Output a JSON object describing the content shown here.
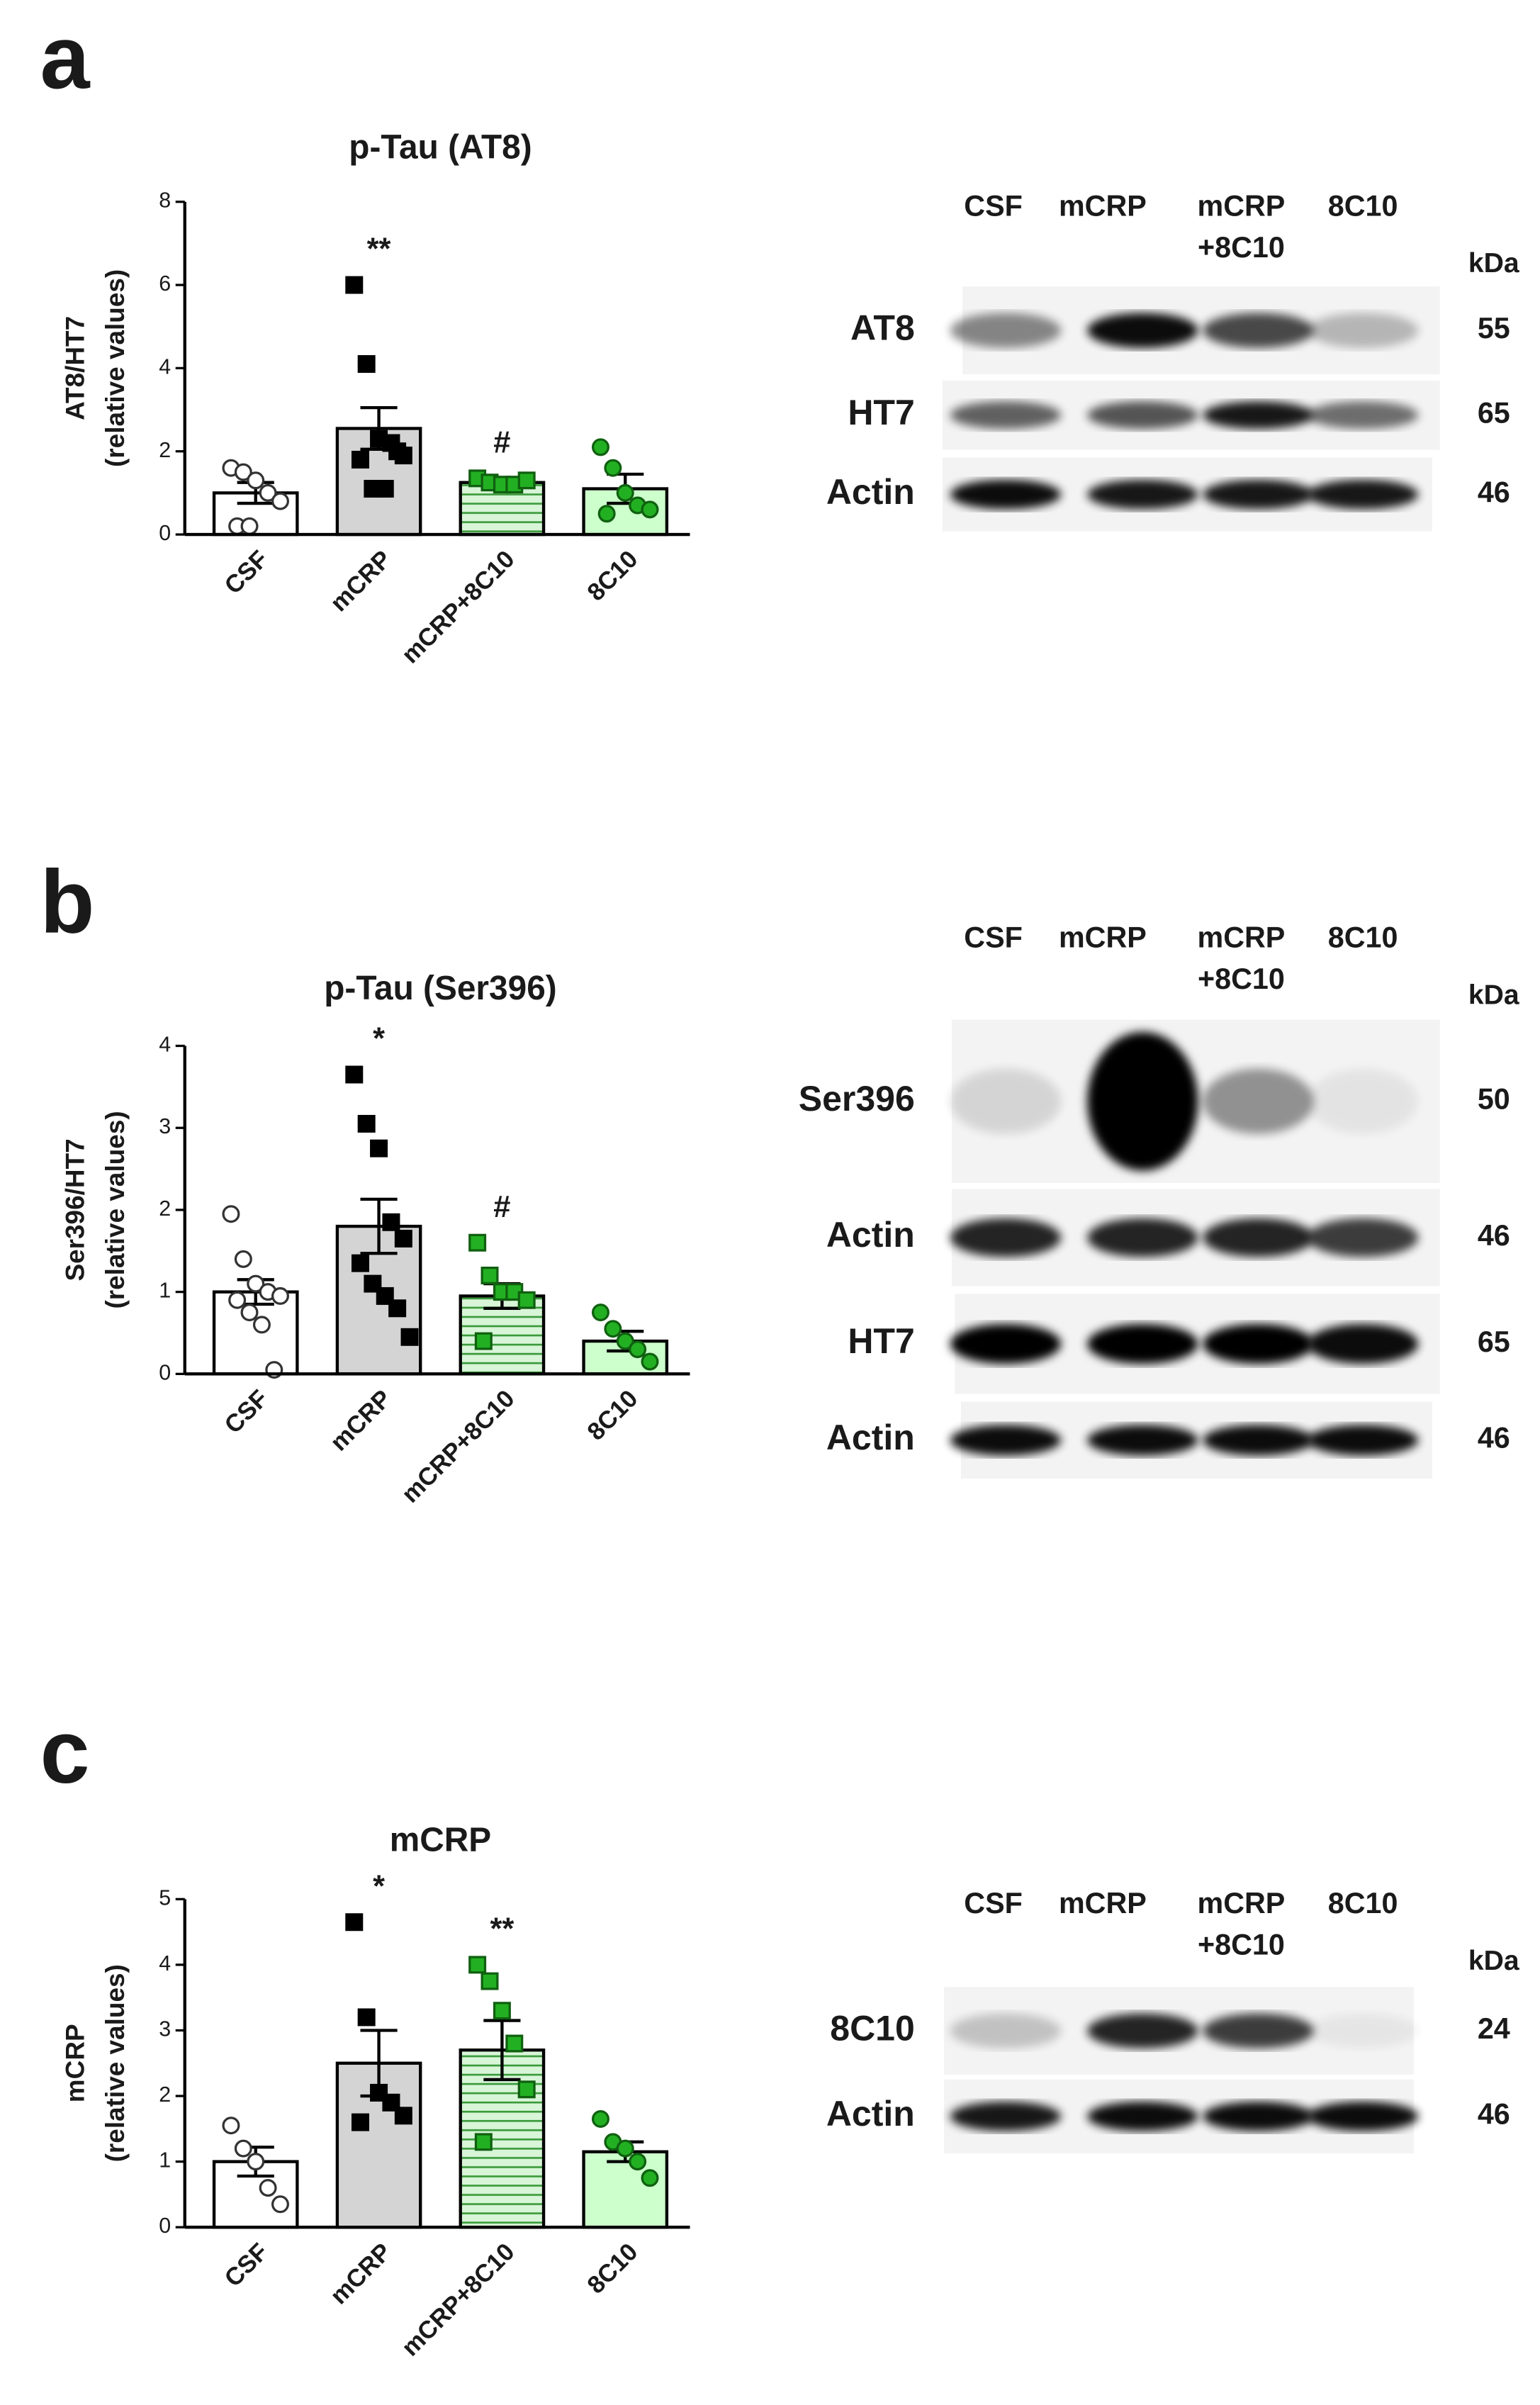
{
  "chart_data": [
    {
      "type": "bar",
      "panel_label": "a",
      "title": "p-Tau (AT8)",
      "ylabel": [
        "AT8/HT7",
        "(relative values)"
      ],
      "categories": [
        "CSF",
        "mCRP",
        "mCRP+8C10",
        "8C10"
      ],
      "values": [
        1.0,
        2.55,
        1.25,
        1.1
      ],
      "errors": [
        0.25,
        0.5,
        0.1,
        0.35
      ],
      "points": [
        [
          1.6,
          1.5,
          1.3,
          1.0,
          0.8,
          0.2,
          0.2
        ],
        [
          6.0,
          4.1,
          2.3,
          2.2,
          1.9,
          1.8,
          1.1,
          1.1,
          2.0
        ],
        [
          1.35,
          1.25,
          1.2,
          1.2,
          1.3
        ],
        [
          2.1,
          1.6,
          1.0,
          0.7,
          0.6,
          0.5
        ]
      ],
      "significance": [
        "",
        "**",
        "#",
        ""
      ],
      "bar_colors": [
        "#ffffff",
        "#d4d4d4",
        "#d8f5d8",
        "#ccffcc"
      ],
      "bar_patterns": [
        "solid",
        "solid",
        "stripes",
        "solid"
      ],
      "point_fills": [
        "#ffffff",
        "#000000",
        "#22b022",
        "#22b022"
      ],
      "point_strokes": [
        "#333333",
        "#000000",
        "#106010",
        "#106010"
      ],
      "point_shapes": [
        "circle",
        "square",
        "square",
        "circle"
      ],
      "ylim": [
        0,
        8
      ],
      "yticks": [
        0,
        2,
        4,
        6,
        8
      ]
    },
    {
      "type": "bar",
      "panel_label": "b",
      "title": "p-Tau (Ser396)",
      "ylabel": [
        "Ser396/HT7",
        "(relative values)"
      ],
      "categories": [
        "CSF",
        "mCRP",
        "mCRP+8C10",
        "8C10"
      ],
      "values": [
        1.0,
        1.8,
        0.95,
        0.4
      ],
      "errors": [
        0.15,
        0.33,
        0.15,
        0.12
      ],
      "points": [
        [
          1.95,
          1.4,
          1.1,
          1.0,
          0.95,
          0.9,
          0.75,
          0.6,
          0.05
        ],
        [
          3.65,
          3.05,
          2.75,
          1.85,
          1.65,
          1.35,
          1.1,
          0.95,
          0.8,
          0.45
        ],
        [
          1.6,
          1.2,
          1.0,
          1.0,
          0.9,
          0.4
        ],
        [
          0.75,
          0.55,
          0.4,
          0.3,
          0.15
        ]
      ],
      "significance": [
        "",
        "*",
        "#",
        ""
      ],
      "bar_colors": [
        "#ffffff",
        "#d4d4d4",
        "#d8f5d8",
        "#ccffcc"
      ],
      "bar_patterns": [
        "solid",
        "solid",
        "stripes",
        "solid"
      ],
      "point_fills": [
        "#ffffff",
        "#000000",
        "#22b022",
        "#22b022"
      ],
      "point_strokes": [
        "#333333",
        "#000000",
        "#106010",
        "#106010"
      ],
      "point_shapes": [
        "circle",
        "square",
        "square",
        "circle"
      ],
      "ylim": [
        0,
        4
      ],
      "yticks": [
        0,
        1,
        2,
        3,
        4
      ]
    },
    {
      "type": "bar",
      "panel_label": "c",
      "title": "mCRP",
      "ylabel": [
        "mCRP",
        "(relative values)"
      ],
      "categories": [
        "CSF",
        "mCRP",
        "mCRP+8C10",
        "8C10"
      ],
      "values": [
        1.0,
        2.5,
        2.7,
        1.15
      ],
      "errors": [
        0.22,
        0.5,
        0.45,
        0.15
      ],
      "points": [
        [
          1.55,
          1.2,
          1.0,
          0.6,
          0.35
        ],
        [
          4.65,
          3.2,
          2.05,
          1.9,
          1.7,
          1.6
        ],
        [
          4.0,
          3.75,
          3.3,
          2.8,
          2.1,
          1.3
        ],
        [
          1.65,
          1.3,
          1.2,
          1.0,
          0.75
        ]
      ],
      "significance": [
        "",
        "*",
        "**",
        ""
      ],
      "bar_colors": [
        "#ffffff",
        "#d4d4d4",
        "#d8f5d8",
        "#ccffcc"
      ],
      "bar_patterns": [
        "solid",
        "solid",
        "stripes",
        "solid"
      ],
      "point_fills": [
        "#ffffff",
        "#000000",
        "#22b022",
        "#22b022"
      ],
      "point_strokes": [
        "#333333",
        "#000000",
        "#106010",
        "#106010"
      ],
      "point_shapes": [
        "circle",
        "square",
        "square",
        "circle"
      ],
      "ylim": [
        0,
        5
      ],
      "yticks": [
        0,
        1,
        2,
        3,
        4,
        5
      ]
    }
  ],
  "blots": [
    {
      "lanes": [
        "CSF",
        "mCRP",
        [
          "mCRP",
          "+8C10"
        ],
        "8C10"
      ],
      "kda_label": "kDa",
      "rows": [
        {
          "label": "AT8",
          "kda": 55
        },
        {
          "label": "HT7",
          "kda": 65
        },
        {
          "label": "Actin",
          "kda": 46
        }
      ]
    },
    {
      "lanes": [
        "CSF",
        "mCRP",
        [
          "mCRP",
          "+8C10"
        ],
        "8C10"
      ],
      "kda_label": "kDa",
      "rows": [
        {
          "label": "Ser396",
          "kda": 50
        },
        {
          "label": "Actin",
          "kda": 46
        },
        {
          "label": "HT7",
          "kda": 65
        },
        {
          "label": "Actin",
          "kda": 46
        }
      ]
    },
    {
      "lanes": [
        "CSF",
        "mCRP",
        [
          "mCRP",
          "+8C10"
        ],
        "8C10"
      ],
      "kda_label": "kDa",
      "rows": [
        {
          "label": "8C10",
          "kda": 24
        },
        {
          "label": "Actin",
          "kda": 46
        }
      ]
    }
  ]
}
